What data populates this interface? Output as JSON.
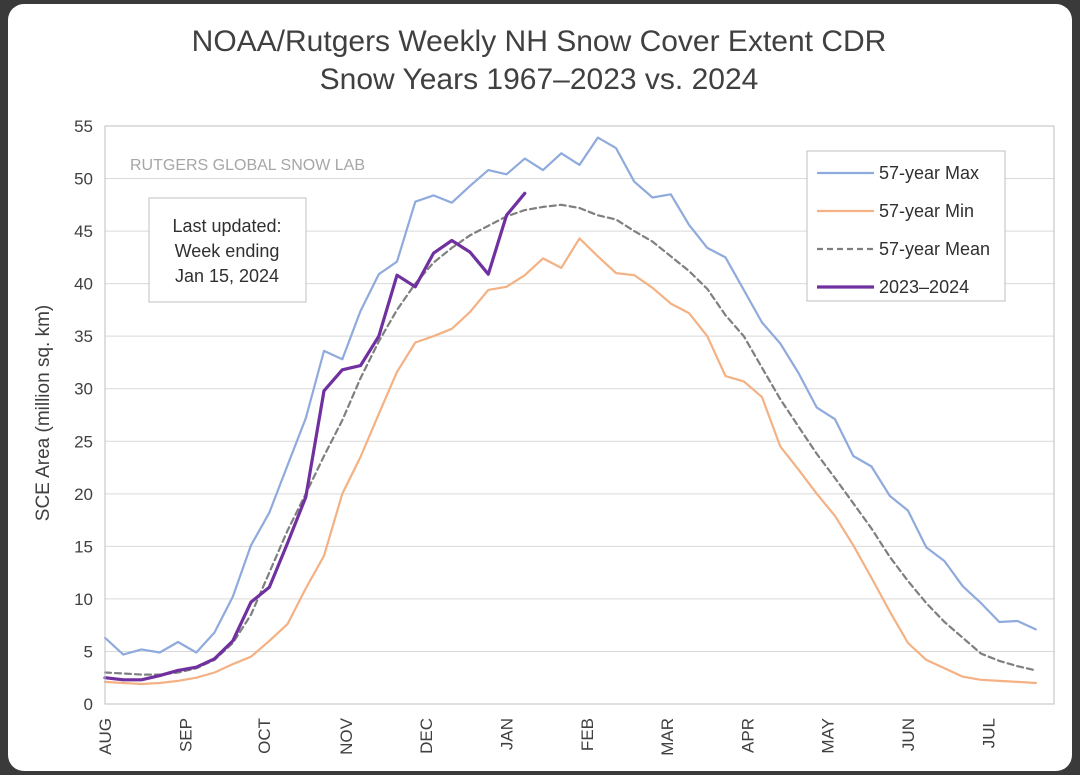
{
  "chart_data": {
    "type": "line",
    "title": "NOAA/Rutgers Weekly NH Snow Cover Extent CDR",
    "subtitle": "Snow Years 1967–2023 vs. 2024",
    "ylabel": "SCE Area (million sq. km)",
    "xlabel": "",
    "ylim": [
      0,
      55
    ],
    "yticks": [
      0,
      5,
      10,
      15,
      20,
      25,
      30,
      35,
      40,
      45,
      50,
      55
    ],
    "months": [
      {
        "label": "AUG",
        "week": 0
      },
      {
        "label": "SEP",
        "week": 4.4
      },
      {
        "label": "OCT",
        "week": 8.7
      },
      {
        "label": "NOV",
        "week": 13.2
      },
      {
        "label": "DEC",
        "week": 17.6
      },
      {
        "label": "JAN",
        "week": 22.0
      },
      {
        "label": "FEB",
        "week": 26.4
      },
      {
        "label": "MAR",
        "week": 30.8
      },
      {
        "label": "APR",
        "week": 35.2
      },
      {
        "label": "MAY",
        "week": 39.6
      },
      {
        "label": "JUN",
        "week": 44.0
      },
      {
        "label": "JUL",
        "week": 48.4
      }
    ],
    "x_max_week": 52,
    "grid": true,
    "legend_position": "top-right",
    "watermark": "RUTGERS GLOBAL SNOW LAB",
    "annotation": [
      "Last updated:",
      "Week ending",
      "Jan 15, 2024"
    ],
    "series": [
      {
        "name": "57-year Max",
        "color": "#8faadc",
        "style": "solid",
        "values": [
          6.3,
          4.7,
          5.2,
          4.9,
          5.9,
          4.9,
          6.8,
          10.2,
          15.1,
          18.2,
          22.7,
          27.2,
          33.6,
          32.8,
          37.4,
          40.9,
          42.1,
          47.8,
          48.4,
          47.7,
          49.3,
          50.8,
          50.4,
          51.9,
          50.8,
          52.4,
          51.3,
          53.9,
          52.9,
          49.7,
          48.2,
          48.5,
          45.6,
          43.4,
          42.5,
          39.4,
          36.3,
          34.3,
          31.5,
          28.2,
          27.1,
          23.6,
          22.6,
          19.8,
          18.4,
          14.9,
          13.6,
          11.2,
          9.6,
          7.8,
          7.9,
          7.1
        ]
      },
      {
        "name": "57-year Min",
        "color": "#f4b183",
        "style": "solid",
        "values": [
          2.1,
          2.0,
          1.9,
          2.0,
          2.2,
          2.5,
          3.0,
          3.8,
          4.5,
          6.0,
          7.6,
          11.0,
          14.1,
          20.0,
          23.5,
          27.6,
          31.6,
          34.4,
          35.0,
          35.7,
          37.3,
          39.4,
          39.7,
          40.8,
          42.4,
          41.5,
          44.3,
          42.6,
          41.0,
          40.8,
          39.6,
          38.1,
          37.2,
          35.0,
          31.2,
          30.7,
          29.2,
          24.5,
          22.3,
          20.0,
          17.9,
          15.1,
          12.0,
          8.8,
          5.8,
          4.2,
          3.4,
          2.6,
          2.3,
          2.2,
          2.1,
          2.0
        ]
      },
      {
        "name": "57-year Mean",
        "color": "#7f7f7f",
        "style": "dashed",
        "values": [
          3.0,
          2.9,
          2.8,
          2.8,
          3.0,
          3.4,
          4.2,
          5.8,
          8.5,
          12.5,
          16.5,
          20.0,
          23.6,
          27.0,
          31.0,
          34.5,
          37.5,
          40.0,
          42.0,
          43.4,
          44.6,
          45.5,
          46.4,
          47.0,
          47.3,
          47.5,
          47.2,
          46.5,
          46.1,
          45.0,
          44.0,
          42.6,
          41.2,
          39.5,
          37.0,
          35.0,
          32.0,
          29.0,
          26.4,
          23.8,
          21.5,
          19.1,
          16.7,
          14.0,
          11.7,
          9.6,
          7.8,
          6.3,
          4.8,
          4.1,
          3.6,
          3.2
        ]
      },
      {
        "name": "2023–2024",
        "color": "#7030a0",
        "style": "solid",
        "values": [
          2.5,
          2.3,
          2.3,
          2.7,
          3.2,
          3.5,
          4.3,
          6.0,
          9.7,
          11.1,
          15.3,
          19.7,
          29.8,
          31.8,
          32.2,
          35.0,
          40.8,
          39.7,
          42.9,
          44.1,
          43.0,
          40.9,
          46.5,
          48.6
        ]
      }
    ]
  }
}
